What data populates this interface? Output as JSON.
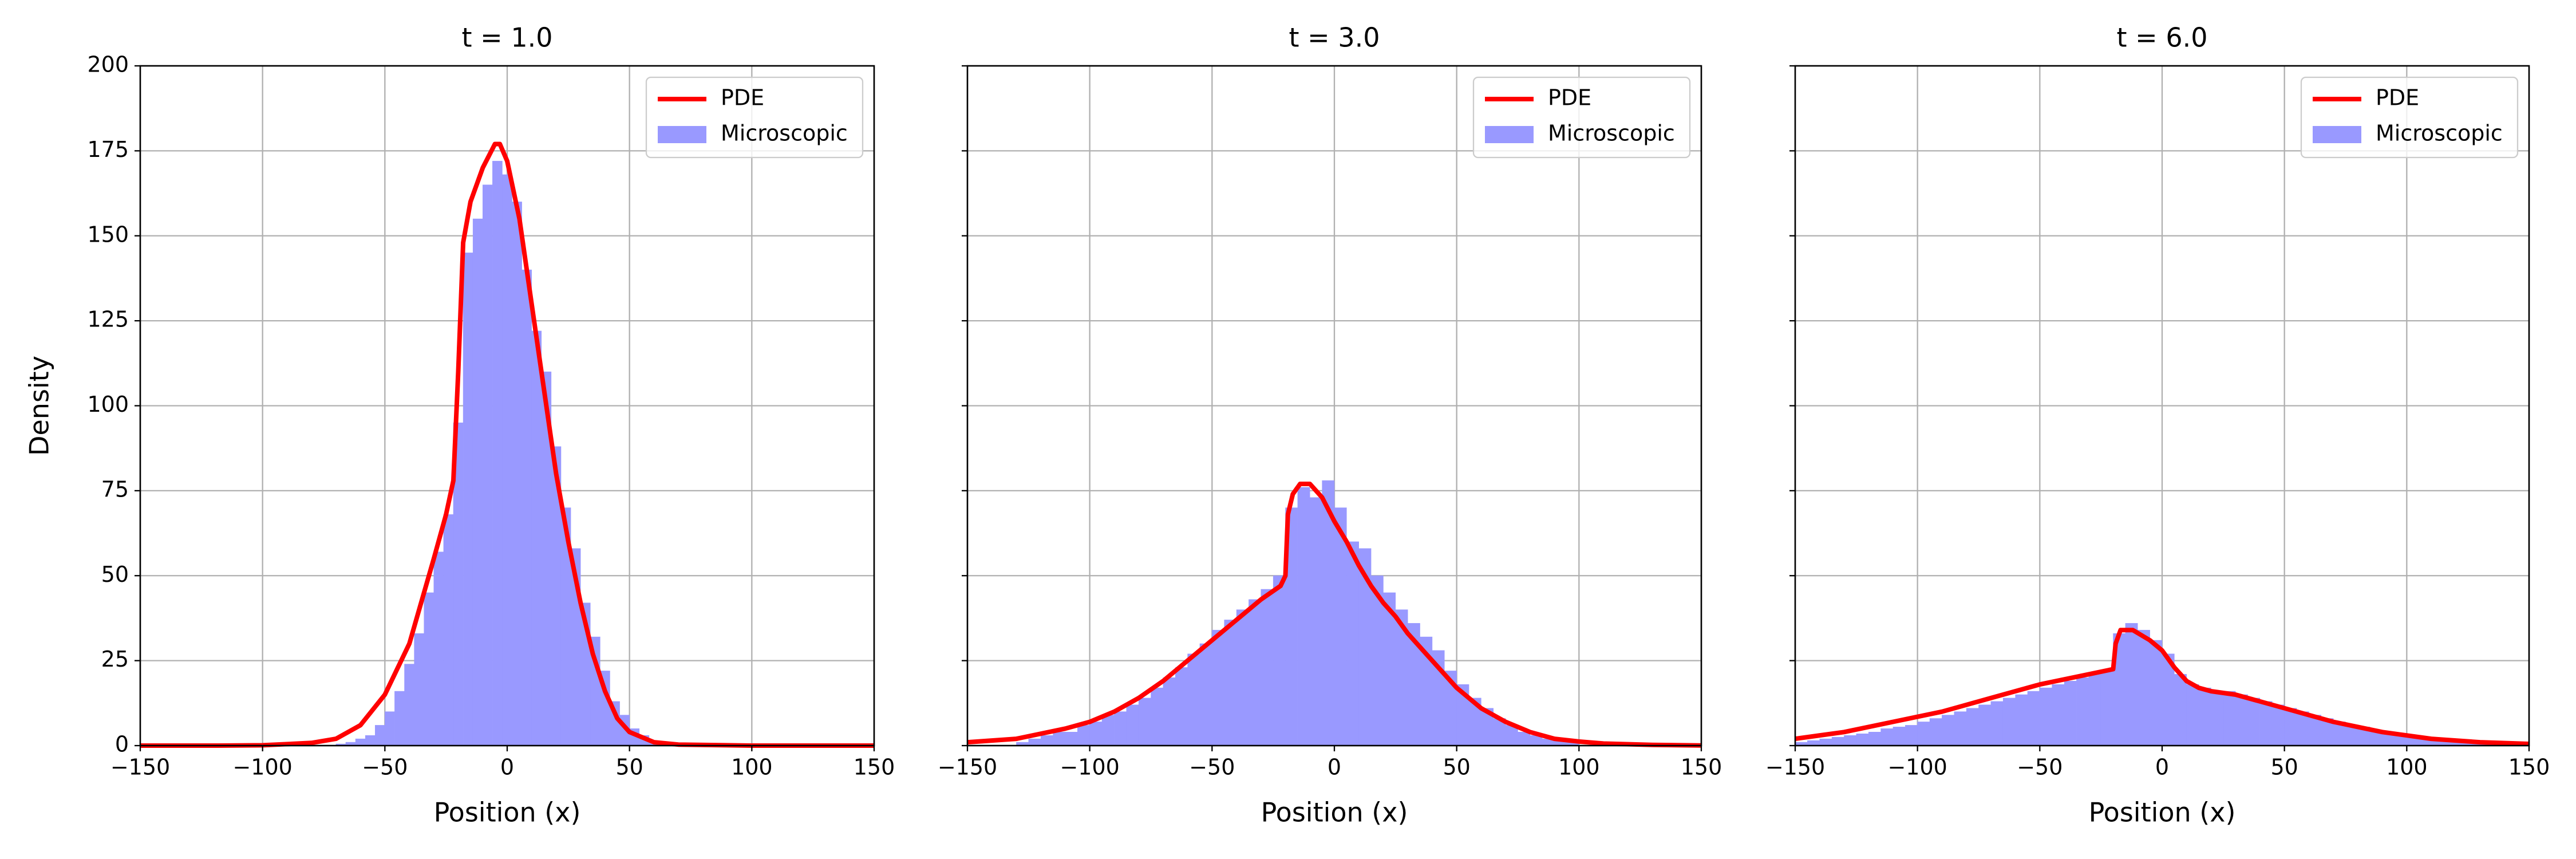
{
  "chart_data": [
    {
      "type": "histogram",
      "title": "t = 1.0",
      "xlabel": "Position (x)",
      "ylabel": "Density",
      "grid": true,
      "legend": "upper right",
      "xlim": [
        -150,
        150
      ],
      "ylim": [
        0,
        200
      ],
      "xticks": [
        {
          "value": -150,
          "label": "−150"
        },
        {
          "value": -100,
          "label": "−100"
        },
        {
          "value": -50,
          "label": "−50"
        },
        0,
        50,
        100,
        150
      ],
      "yticks": [
        0,
        25,
        50,
        75,
        100,
        125,
        150,
        175,
        200
      ],
      "series": [
        {
          "name": "PDE",
          "kind": "line",
          "color": "#ff0000",
          "x": [
            -150,
            -120,
            -100,
            -80,
            -70,
            -60,
            -50,
            -40,
            -30,
            -25,
            -22,
            -20,
            -18,
            -15,
            -10,
            -5,
            -3,
            0,
            5,
            10,
            15,
            20,
            25,
            30,
            35,
            40,
            45,
            50,
            60,
            70,
            100,
            150
          ],
          "values": [
            0,
            0,
            0.1,
            0.8,
            2,
            6,
            15,
            30,
            55,
            68,
            78,
            110,
            148,
            160,
            170,
            177,
            177,
            172,
            155,
            130,
            105,
            80,
            60,
            42,
            27,
            16,
            8,
            4,
            1,
            0.3,
            0,
            0
          ]
        },
        {
          "name": "Microscopic",
          "kind": "histogram",
          "color": "#9999ff",
          "bins": [
            -70,
            -66,
            -62,
            -58,
            -54,
            -50,
            -46,
            -42,
            -38,
            -34,
            -30,
            -26,
            -22,
            -18,
            -14,
            -10,
            -6,
            -2,
            2,
            6,
            10,
            14,
            18,
            22,
            26,
            30,
            34,
            38,
            42,
            46,
            50,
            54,
            58,
            62,
            66,
            70
          ],
          "values": [
            0.5,
            1,
            2,
            3,
            6,
            10,
            16,
            24,
            33,
            45,
            57,
            68,
            95,
            145,
            155,
            165,
            172,
            168,
            160,
            140,
            122,
            110,
            88,
            70,
            58,
            42,
            32,
            22,
            13,
            9,
            5,
            3,
            1,
            0.5,
            0.2
          ]
        }
      ]
    },
    {
      "type": "histogram",
      "title": "t = 3.0",
      "xlabel": "Position (x)",
      "grid": true,
      "legend": "upper right",
      "xlim": [
        -150,
        150
      ],
      "xticks": [
        {
          "value": -150,
          "label": "−150"
        },
        {
          "value": -100,
          "label": "−100"
        },
        {
          "value": -50,
          "label": "−50"
        },
        0,
        50,
        100,
        150
      ],
      "series": [
        {
          "name": "PDE",
          "kind": "line",
          "color": "#ff0000",
          "x": [
            -150,
            -130,
            -110,
            -100,
            -90,
            -80,
            -70,
            -60,
            -50,
            -40,
            -30,
            -22,
            -20,
            -19,
            -17,
            -14,
            -10,
            -5,
            0,
            5,
            10,
            15,
            20,
            25,
            30,
            40,
            50,
            60,
            70,
            80,
            90,
            100,
            110,
            130,
            150
          ],
          "values": [
            1,
            2,
            5,
            7,
            10,
            14,
            19,
            25,
            31,
            37,
            43,
            47,
            50,
            68,
            74,
            77,
            77,
            73,
            66,
            60,
            53,
            47,
            42,
            38,
            33,
            25,
            17,
            11,
            7,
            4,
            2,
            1.2,
            0.6,
            0.2,
            0.05
          ]
        },
        {
          "name": "Microscopic",
          "kind": "histogram",
          "color": "#9999ff",
          "bins": [
            -130,
            -125,
            -120,
            -115,
            -110,
            -105,
            -100,
            -95,
            -90,
            -85,
            -80,
            -75,
            -70,
            -65,
            -60,
            -55,
            -50,
            -45,
            -40,
            -35,
            -30,
            -25,
            -20,
            -15,
            -10,
            -5,
            0,
            5,
            10,
            15,
            20,
            25,
            30,
            35,
            40,
            45,
            50,
            55,
            60,
            65,
            70,
            75,
            80,
            85,
            90,
            95,
            100
          ],
          "values": [
            1,
            2,
            3,
            4,
            4,
            6,
            7,
            9,
            10,
            12,
            14,
            17,
            20,
            23,
            27,
            30,
            34,
            37,
            40,
            43,
            46,
            50,
            70,
            76,
            73,
            78,
            70,
            60,
            58,
            50,
            45,
            40,
            36,
            32,
            28,
            22,
            18,
            14,
            11,
            8,
            6,
            4,
            3,
            2,
            1.5,
            1
          ]
        }
      ]
    },
    {
      "type": "histogram",
      "title": "t = 6.0",
      "xlabel": "Position (x)",
      "grid": true,
      "legend": "upper right",
      "xlim": [
        -150,
        150
      ],
      "xticks": [
        {
          "value": -150,
          "label": "−150"
        },
        {
          "value": -100,
          "label": "−100"
        },
        {
          "value": -50,
          "label": "−50"
        },
        0,
        50,
        100,
        150
      ],
      "series": [
        {
          "name": "PDE",
          "kind": "line",
          "color": "#ff0000",
          "x": [
            -150,
            -130,
            -110,
            -90,
            -70,
            -50,
            -30,
            -20,
            -19,
            -17,
            -12,
            -5,
            0,
            5,
            10,
            15,
            20,
            30,
            40,
            50,
            60,
            70,
            80,
            90,
            100,
            110,
            120,
            130,
            150
          ],
          "values": [
            2,
            4,
            7,
            10,
            14,
            18,
            21,
            22.5,
            30,
            34,
            34,
            31,
            28,
            23,
            19,
            17,
            16,
            15,
            13,
            11,
            9,
            7,
            5.5,
            4,
            3,
            2,
            1.5,
            1,
            0.5
          ]
        },
        {
          "name": "Microscopic",
          "kind": "histogram",
          "color": "#9999ff",
          "bins": [
            -150,
            -145,
            -140,
            -135,
            -130,
            -125,
            -120,
            -115,
            -110,
            -105,
            -100,
            -95,
            -90,
            -85,
            -80,
            -75,
            -70,
            -65,
            -60,
            -55,
            -50,
            -45,
            -40,
            -35,
            -30,
            -25,
            -20,
            -15,
            -10,
            -5,
            0,
            5,
            10,
            15,
            20,
            25,
            30,
            35,
            40,
            45,
            50,
            55,
            60,
            65,
            70,
            75,
            80,
            85,
            90,
            95,
            100,
            105,
            110,
            115,
            120,
            125,
            130,
            135,
            140,
            145,
            150
          ],
          "values": [
            1,
            1.5,
            2,
            2.5,
            3,
            3.5,
            4,
            5,
            5.5,
            6,
            7,
            8,
            9,
            10,
            11,
            12,
            13,
            14,
            15,
            16,
            17,
            18,
            19,
            20,
            21,
            22,
            33,
            36,
            34,
            31,
            27,
            21,
            18,
            17,
            16,
            16,
            15,
            14,
            13,
            12,
            11,
            10,
            9,
            8,
            7,
            6,
            5.5,
            4.5,
            4,
            3,
            2.5,
            2,
            1.5,
            1.5,
            1,
            0.8,
            0.6,
            0.4,
            0.3,
            0.2
          ]
        }
      ]
    }
  ]
}
